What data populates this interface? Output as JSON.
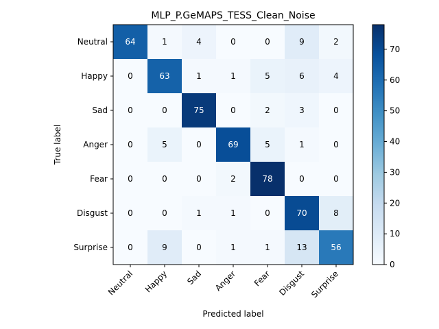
{
  "chart_data": {
    "type": "heatmap",
    "title": "MLP_P.GeMAPS_TESS_Clean_Noise",
    "xlabel": "Predicted label",
    "ylabel": "True label",
    "row_labels": [
      "Neutral",
      "Happy",
      "Sad",
      "Anger",
      "Fear",
      "Disgust",
      "Surprise"
    ],
    "col_labels": [
      "Neutral",
      "Happy",
      "Sad",
      "Anger",
      "Fear",
      "Disgust",
      "Surprise"
    ],
    "values": [
      [
        64,
        1,
        4,
        0,
        0,
        9,
        2
      ],
      [
        0,
        63,
        1,
        1,
        5,
        6,
        4
      ],
      [
        0,
        0,
        75,
        0,
        2,
        3,
        0
      ],
      [
        0,
        5,
        0,
        69,
        5,
        1,
        0
      ],
      [
        0,
        0,
        0,
        2,
        78,
        0,
        0
      ],
      [
        0,
        0,
        1,
        1,
        0,
        70,
        8
      ],
      [
        0,
        9,
        0,
        1,
        1,
        13,
        56
      ]
    ],
    "colorbar": {
      "ticks": [
        0,
        10,
        20,
        30,
        40,
        50,
        60,
        70
      ],
      "range": [
        0,
        78
      ],
      "colormap": "Blues"
    }
  }
}
